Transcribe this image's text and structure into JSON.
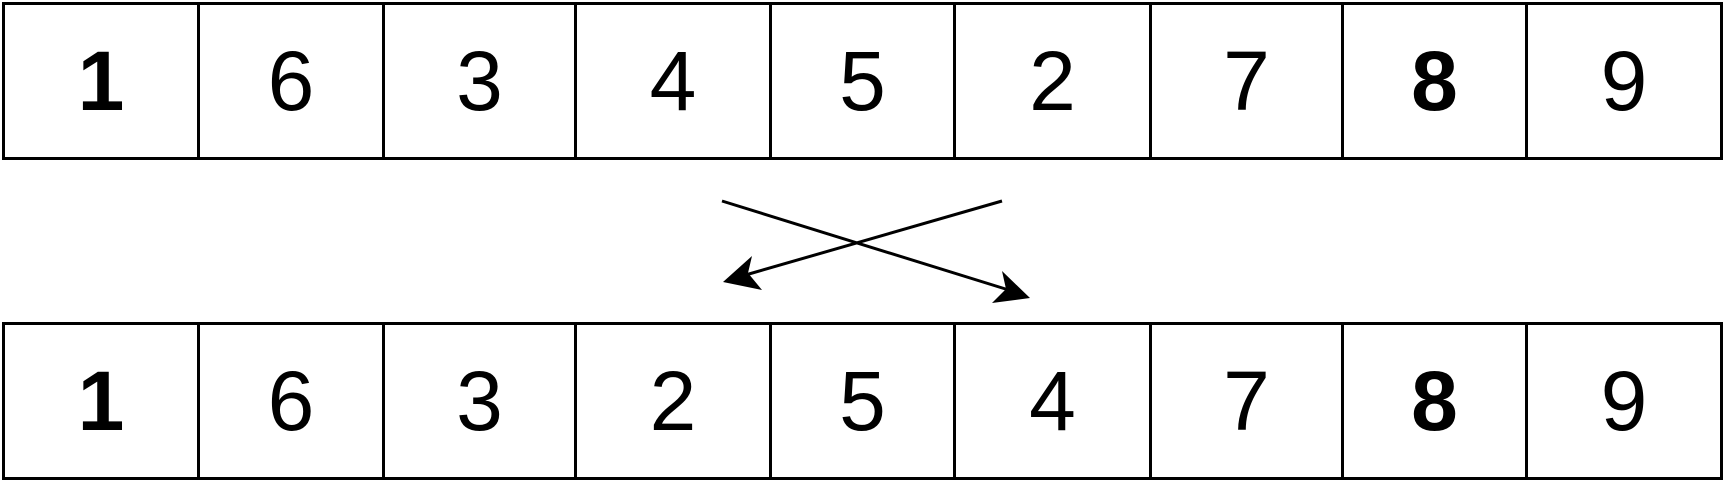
{
  "rows": [
    {
      "id": "before",
      "cells": [
        {
          "value": "1",
          "bold": true
        },
        {
          "value": "6",
          "bold": false
        },
        {
          "value": "3",
          "bold": false
        },
        {
          "value": "4",
          "bold": false
        },
        {
          "value": "5",
          "bold": false
        },
        {
          "value": "2",
          "bold": false
        },
        {
          "value": "7",
          "bold": false
        },
        {
          "value": "8",
          "bold": true
        },
        {
          "value": "9",
          "bold": false
        }
      ]
    },
    {
      "id": "after",
      "cells": [
        {
          "value": "1",
          "bold": true
        },
        {
          "value": "6",
          "bold": false
        },
        {
          "value": "3",
          "bold": false
        },
        {
          "value": "2",
          "bold": false
        },
        {
          "value": "5",
          "bold": false
        },
        {
          "value": "4",
          "bold": false
        },
        {
          "value": "7",
          "bold": false
        },
        {
          "value": "8",
          "bold": true
        },
        {
          "value": "9",
          "bold": false
        }
      ]
    }
  ],
  "swap": {
    "from_index": 3,
    "to_index": 5
  },
  "colors": {
    "stroke": "#000000",
    "background": "#ffffff"
  }
}
